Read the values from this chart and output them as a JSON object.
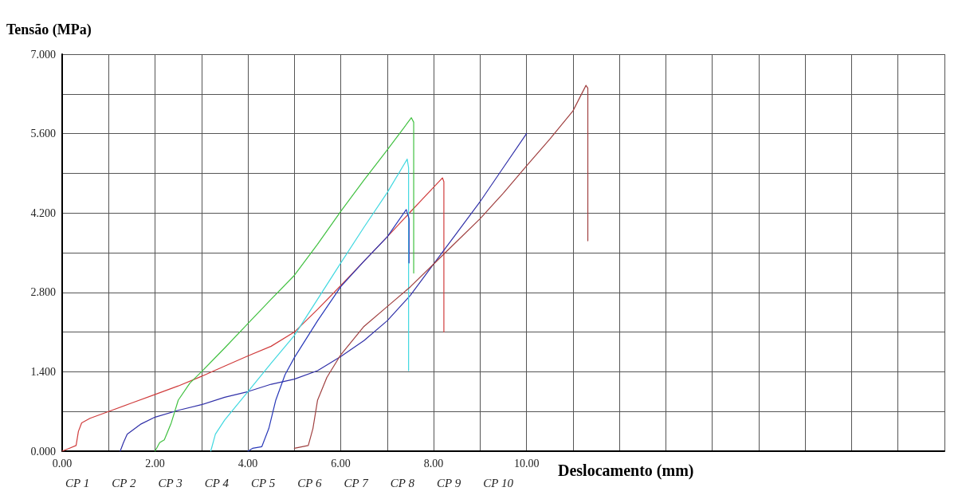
{
  "chart_data": {
    "type": "line",
    "ylabel": "Tensão (MPa)",
    "xlabel": "Deslocamento (mm)",
    "xlim": [
      0,
      19
    ],
    "ylim": [
      0,
      7
    ],
    "xticks": [
      {
        "value": 0,
        "label": "0.00"
      },
      {
        "value": 1,
        "label": null
      },
      {
        "value": 2,
        "label": "2.00"
      },
      {
        "value": 3,
        "label": null
      },
      {
        "value": 4,
        "label": "4.00"
      },
      {
        "value": 5,
        "label": null
      },
      {
        "value": 6,
        "label": "6.00"
      },
      {
        "value": 7,
        "label": null
      },
      {
        "value": 8,
        "label": "8.00"
      },
      {
        "value": 9,
        "label": null
      },
      {
        "value": 10,
        "label": "10.00"
      },
      {
        "value": 11,
        "label": null
      },
      {
        "value": 12,
        "label": null
      },
      {
        "value": 13,
        "label": null
      },
      {
        "value": 14,
        "label": null
      },
      {
        "value": 15,
        "label": null
      },
      {
        "value": 16,
        "label": null
      },
      {
        "value": 17,
        "label": null
      },
      {
        "value": 18,
        "label": null
      },
      {
        "value": 19,
        "label": null
      }
    ],
    "yticks": [
      {
        "value": 0,
        "label": "0.000"
      },
      {
        "value": 0.7,
        "label": null
      },
      {
        "value": 1.4,
        "label": "1.400"
      },
      {
        "value": 2.1,
        "label": null
      },
      {
        "value": 2.8,
        "label": "2.800"
      },
      {
        "value": 3.5,
        "label": null
      },
      {
        "value": 4.2,
        "label": "4.200"
      },
      {
        "value": 4.9,
        "label": null
      },
      {
        "value": 5.6,
        "label": "5.600"
      },
      {
        "value": 6.3,
        "label": null
      },
      {
        "value": 7,
        "label": "7.000"
      }
    ],
    "grid": true,
    "marker": "none",
    "line_style": "solid",
    "annotations": [
      "CP 1",
      "CP 2",
      "CP 3",
      "CP 4",
      "CP 5",
      "CP 6",
      "CP 7",
      "CP 8",
      "CP 9",
      "CP 10"
    ],
    "series": [
      {
        "color": "#d03c3c",
        "x": [
          0,
          0.15,
          0.3,
          0.35,
          0.42,
          0.6,
          1.0,
          1.5,
          2.0,
          2.5,
          3.0,
          3.5,
          4.0,
          4.5,
          5.0,
          5.5,
          6.0,
          6.5,
          7.0,
          7.5,
          8.19,
          8.22,
          8.22
        ],
        "values": [
          0,
          0.05,
          0.1,
          0.35,
          0.5,
          0.58,
          0.7,
          0.85,
          1.0,
          1.15,
          1.32,
          1.5,
          1.68,
          1.85,
          2.1,
          2.5,
          2.92,
          3.35,
          3.78,
          4.22,
          4.82,
          4.75,
          2.1
        ]
      },
      {
        "color": "#3030a8",
        "x": [
          1.25,
          1.32,
          1.4,
          1.7,
          2.0,
          2.5,
          3.0,
          3.5,
          4.0,
          4.5,
          5.0,
          5.5,
          6.0,
          6.5,
          7.0,
          7.5,
          8.0,
          8.5,
          9.0,
          9.5,
          10.0
        ],
        "values": [
          0,
          0.15,
          0.3,
          0.48,
          0.6,
          0.72,
          0.82,
          0.95,
          1.05,
          1.18,
          1.27,
          1.42,
          1.67,
          1.95,
          2.3,
          2.75,
          3.3,
          3.85,
          4.4,
          5.0,
          5.6
        ]
      },
      {
        "color": "#40c040",
        "x": [
          2.0,
          2.1,
          2.2,
          2.35,
          2.5,
          2.75,
          3.0,
          3.5,
          4.0,
          4.5,
          5.0,
          5.5,
          6.0,
          6.5,
          7.0,
          7.52,
          7.57,
          7.57
        ],
        "values": [
          0,
          0.15,
          0.2,
          0.5,
          0.9,
          1.2,
          1.4,
          1.82,
          2.25,
          2.68,
          3.1,
          3.65,
          4.23,
          4.78,
          5.31,
          5.88,
          5.8,
          3.14
        ]
      },
      {
        "color": "#40d8e0",
        "x": [
          3.2,
          3.3,
          3.5,
          4.0,
          4.5,
          5.0,
          5.5,
          6.0,
          6.5,
          7.0,
          7.43,
          7.46,
          7.46
        ],
        "values": [
          0,
          0.3,
          0.55,
          1.05,
          1.55,
          2.04,
          2.68,
          3.32,
          3.95,
          4.56,
          5.15,
          5.0,
          1.42
        ]
      },
      {
        "color": "#2838b8",
        "x": [
          4.0,
          4.1,
          4.3,
          4.45,
          4.6,
          4.8,
          5.0,
          5.5,
          6.0,
          6.5,
          7.0,
          7.41,
          7.47,
          7.47
        ],
        "values": [
          0,
          0.05,
          0.08,
          0.4,
          0.9,
          1.35,
          1.65,
          2.3,
          2.9,
          3.35,
          3.78,
          4.26,
          4.1,
          3.32
        ]
      },
      {
        "color": "#a04040",
        "x": [
          5.0,
          5.3,
          5.4,
          5.5,
          5.7,
          6.0,
          6.5,
          7.0,
          7.5,
          8.0,
          8.5,
          9.0,
          9.5,
          10.0,
          10.5,
          11.0,
          11.28,
          11.32,
          11.32
        ],
        "values": [
          0.05,
          0.1,
          0.4,
          0.9,
          1.3,
          1.7,
          2.2,
          2.55,
          2.9,
          3.3,
          3.7,
          4.1,
          4.55,
          5.03,
          5.5,
          6.0,
          6.45,
          6.4,
          3.71
        ]
      }
    ]
  }
}
